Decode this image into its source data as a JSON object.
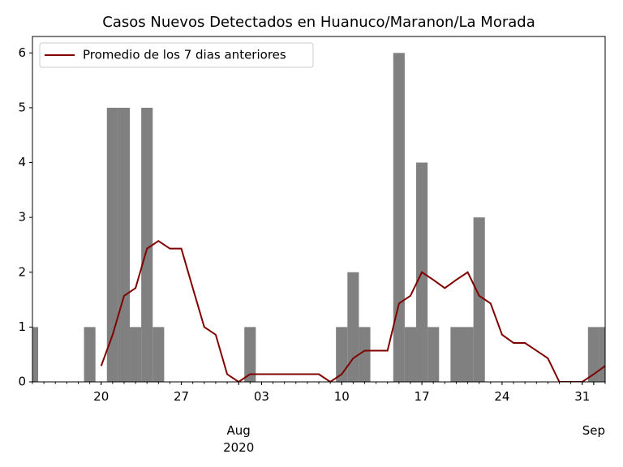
{
  "chart_data": {
    "type": "bar_line",
    "title": "Casos Nuevos Detectados en Huanuco/Maranon/La Morada",
    "x": [
      "2020-07-14",
      "2020-07-15",
      "2020-07-16",
      "2020-07-17",
      "2020-07-18",
      "2020-07-19",
      "2020-07-20",
      "2020-07-21",
      "2020-07-22",
      "2020-07-23",
      "2020-07-24",
      "2020-07-25",
      "2020-07-26",
      "2020-07-27",
      "2020-07-28",
      "2020-07-29",
      "2020-07-30",
      "2020-07-31",
      "2020-08-01",
      "2020-08-02",
      "2020-08-03",
      "2020-08-04",
      "2020-08-05",
      "2020-08-06",
      "2020-08-07",
      "2020-08-08",
      "2020-08-09",
      "2020-08-10",
      "2020-08-11",
      "2020-08-12",
      "2020-08-13",
      "2020-08-14",
      "2020-08-15",
      "2020-08-16",
      "2020-08-17",
      "2020-08-18",
      "2020-08-19",
      "2020-08-20",
      "2020-08-21",
      "2020-08-22",
      "2020-08-23",
      "2020-08-24",
      "2020-08-25",
      "2020-08-26",
      "2020-08-27",
      "2020-08-28",
      "2020-08-29",
      "2020-08-30",
      "2020-08-31",
      "2020-09-01",
      "2020-09-02"
    ],
    "series": [
      {
        "kind": "bar",
        "color": "#808080",
        "values": [
          1,
          0,
          0,
          0,
          0,
          1,
          0,
          5,
          5,
          1,
          5,
          1,
          0,
          0,
          0,
          0,
          0,
          0,
          0,
          1,
          0,
          0,
          0,
          0,
          0,
          0,
          0,
          1,
          2,
          1,
          0,
          0,
          6,
          1,
          4,
          1,
          0,
          1,
          1,
          3,
          0,
          0,
          0,
          0,
          0,
          0,
          0,
          0,
          0,
          1,
          1
        ]
      },
      {
        "kind": "line",
        "name": "Promedio de los 7 dias anteriores",
        "color": "#800000",
        "values": [
          null,
          null,
          null,
          null,
          null,
          null,
          0.29,
          0.86,
          1.57,
          1.71,
          2.43,
          2.57,
          2.43,
          2.43,
          1.71,
          1.0,
          0.86,
          0.14,
          0,
          0.14,
          0.14,
          0.14,
          0.14,
          0.14,
          0.14,
          0.14,
          0,
          0.14,
          0.43,
          0.57,
          0.57,
          0.57,
          1.43,
          1.57,
          2.0,
          1.86,
          1.71,
          1.86,
          2.0,
          1.57,
          1.43,
          0.86,
          0.71,
          0.71,
          0.57,
          0.43,
          0,
          0,
          0,
          0.14,
          0.29
        ]
      }
    ],
    "xlim": [
      "2020-07-14",
      "2020-09-02"
    ],
    "xticks": [
      {
        "value": "2020-07-20",
        "label": "20"
      },
      {
        "value": "2020-07-27",
        "label": "27"
      },
      {
        "value": "2020-08-01",
        "label": "Aug\n2020"
      },
      {
        "value": "2020-08-03",
        "label": "03"
      },
      {
        "value": "2020-08-10",
        "label": "10"
      },
      {
        "value": "2020-08-17",
        "label": "17"
      },
      {
        "value": "2020-08-24",
        "label": "24"
      },
      {
        "value": "2020-08-31",
        "label": "31"
      },
      {
        "value": "2020-09-01",
        "label": "Sep"
      }
    ],
    "ylim": [
      0,
      6.3
    ],
    "yticks": [
      0,
      1,
      2,
      3,
      4,
      5,
      6
    ],
    "legend": "upper left"
  }
}
